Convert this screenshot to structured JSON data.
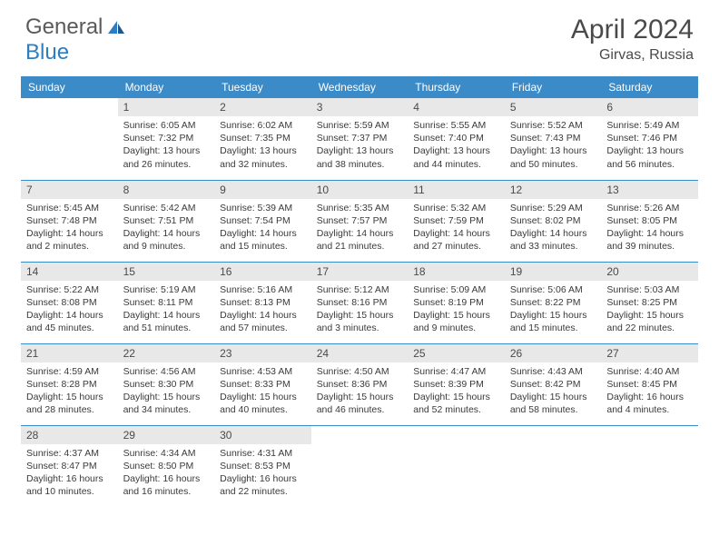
{
  "logo": {
    "general": "General",
    "blue": "Blue"
  },
  "title": "April 2024",
  "location": "Girvas, Russia",
  "colors": {
    "header_bg": "#3b8bc9",
    "daynum_bg": "#e8e8e8",
    "text": "#4a4a4a",
    "line": "#3b8bc9",
    "logo_blue": "#2d7dc0"
  },
  "dayHeaders": [
    "Sunday",
    "Monday",
    "Tuesday",
    "Wednesday",
    "Thursday",
    "Friday",
    "Saturday"
  ],
  "weeks": [
    [
      {
        "n": "",
        "sr": "",
        "ss": "",
        "dl": ""
      },
      {
        "n": "1",
        "sr": "Sunrise: 6:05 AM",
        "ss": "Sunset: 7:32 PM",
        "dl": "Daylight: 13 hours and 26 minutes."
      },
      {
        "n": "2",
        "sr": "Sunrise: 6:02 AM",
        "ss": "Sunset: 7:35 PM",
        "dl": "Daylight: 13 hours and 32 minutes."
      },
      {
        "n": "3",
        "sr": "Sunrise: 5:59 AM",
        "ss": "Sunset: 7:37 PM",
        "dl": "Daylight: 13 hours and 38 minutes."
      },
      {
        "n": "4",
        "sr": "Sunrise: 5:55 AM",
        "ss": "Sunset: 7:40 PM",
        "dl": "Daylight: 13 hours and 44 minutes."
      },
      {
        "n": "5",
        "sr": "Sunrise: 5:52 AM",
        "ss": "Sunset: 7:43 PM",
        "dl": "Daylight: 13 hours and 50 minutes."
      },
      {
        "n": "6",
        "sr": "Sunrise: 5:49 AM",
        "ss": "Sunset: 7:46 PM",
        "dl": "Daylight: 13 hours and 56 minutes."
      }
    ],
    [
      {
        "n": "7",
        "sr": "Sunrise: 5:45 AM",
        "ss": "Sunset: 7:48 PM",
        "dl": "Daylight: 14 hours and 2 minutes."
      },
      {
        "n": "8",
        "sr": "Sunrise: 5:42 AM",
        "ss": "Sunset: 7:51 PM",
        "dl": "Daylight: 14 hours and 9 minutes."
      },
      {
        "n": "9",
        "sr": "Sunrise: 5:39 AM",
        "ss": "Sunset: 7:54 PM",
        "dl": "Daylight: 14 hours and 15 minutes."
      },
      {
        "n": "10",
        "sr": "Sunrise: 5:35 AM",
        "ss": "Sunset: 7:57 PM",
        "dl": "Daylight: 14 hours and 21 minutes."
      },
      {
        "n": "11",
        "sr": "Sunrise: 5:32 AM",
        "ss": "Sunset: 7:59 PM",
        "dl": "Daylight: 14 hours and 27 minutes."
      },
      {
        "n": "12",
        "sr": "Sunrise: 5:29 AM",
        "ss": "Sunset: 8:02 PM",
        "dl": "Daylight: 14 hours and 33 minutes."
      },
      {
        "n": "13",
        "sr": "Sunrise: 5:26 AM",
        "ss": "Sunset: 8:05 PM",
        "dl": "Daylight: 14 hours and 39 minutes."
      }
    ],
    [
      {
        "n": "14",
        "sr": "Sunrise: 5:22 AM",
        "ss": "Sunset: 8:08 PM",
        "dl": "Daylight: 14 hours and 45 minutes."
      },
      {
        "n": "15",
        "sr": "Sunrise: 5:19 AM",
        "ss": "Sunset: 8:11 PM",
        "dl": "Daylight: 14 hours and 51 minutes."
      },
      {
        "n": "16",
        "sr": "Sunrise: 5:16 AM",
        "ss": "Sunset: 8:13 PM",
        "dl": "Daylight: 14 hours and 57 minutes."
      },
      {
        "n": "17",
        "sr": "Sunrise: 5:12 AM",
        "ss": "Sunset: 8:16 PM",
        "dl": "Daylight: 15 hours and 3 minutes."
      },
      {
        "n": "18",
        "sr": "Sunrise: 5:09 AM",
        "ss": "Sunset: 8:19 PM",
        "dl": "Daylight: 15 hours and 9 minutes."
      },
      {
        "n": "19",
        "sr": "Sunrise: 5:06 AM",
        "ss": "Sunset: 8:22 PM",
        "dl": "Daylight: 15 hours and 15 minutes."
      },
      {
        "n": "20",
        "sr": "Sunrise: 5:03 AM",
        "ss": "Sunset: 8:25 PM",
        "dl": "Daylight: 15 hours and 22 minutes."
      }
    ],
    [
      {
        "n": "21",
        "sr": "Sunrise: 4:59 AM",
        "ss": "Sunset: 8:28 PM",
        "dl": "Daylight: 15 hours and 28 minutes."
      },
      {
        "n": "22",
        "sr": "Sunrise: 4:56 AM",
        "ss": "Sunset: 8:30 PM",
        "dl": "Daylight: 15 hours and 34 minutes."
      },
      {
        "n": "23",
        "sr": "Sunrise: 4:53 AM",
        "ss": "Sunset: 8:33 PM",
        "dl": "Daylight: 15 hours and 40 minutes."
      },
      {
        "n": "24",
        "sr": "Sunrise: 4:50 AM",
        "ss": "Sunset: 8:36 PM",
        "dl": "Daylight: 15 hours and 46 minutes."
      },
      {
        "n": "25",
        "sr": "Sunrise: 4:47 AM",
        "ss": "Sunset: 8:39 PM",
        "dl": "Daylight: 15 hours and 52 minutes."
      },
      {
        "n": "26",
        "sr": "Sunrise: 4:43 AM",
        "ss": "Sunset: 8:42 PM",
        "dl": "Daylight: 15 hours and 58 minutes."
      },
      {
        "n": "27",
        "sr": "Sunrise: 4:40 AM",
        "ss": "Sunset: 8:45 PM",
        "dl": "Daylight: 16 hours and 4 minutes."
      }
    ],
    [
      {
        "n": "28",
        "sr": "Sunrise: 4:37 AM",
        "ss": "Sunset: 8:47 PM",
        "dl": "Daylight: 16 hours and 10 minutes."
      },
      {
        "n": "29",
        "sr": "Sunrise: 4:34 AM",
        "ss": "Sunset: 8:50 PM",
        "dl": "Daylight: 16 hours and 16 minutes."
      },
      {
        "n": "30",
        "sr": "Sunrise: 4:31 AM",
        "ss": "Sunset: 8:53 PM",
        "dl": "Daylight: 16 hours and 22 minutes."
      },
      {
        "n": "",
        "sr": "",
        "ss": "",
        "dl": ""
      },
      {
        "n": "",
        "sr": "",
        "ss": "",
        "dl": ""
      },
      {
        "n": "",
        "sr": "",
        "ss": "",
        "dl": ""
      },
      {
        "n": "",
        "sr": "",
        "ss": "",
        "dl": ""
      }
    ]
  ]
}
